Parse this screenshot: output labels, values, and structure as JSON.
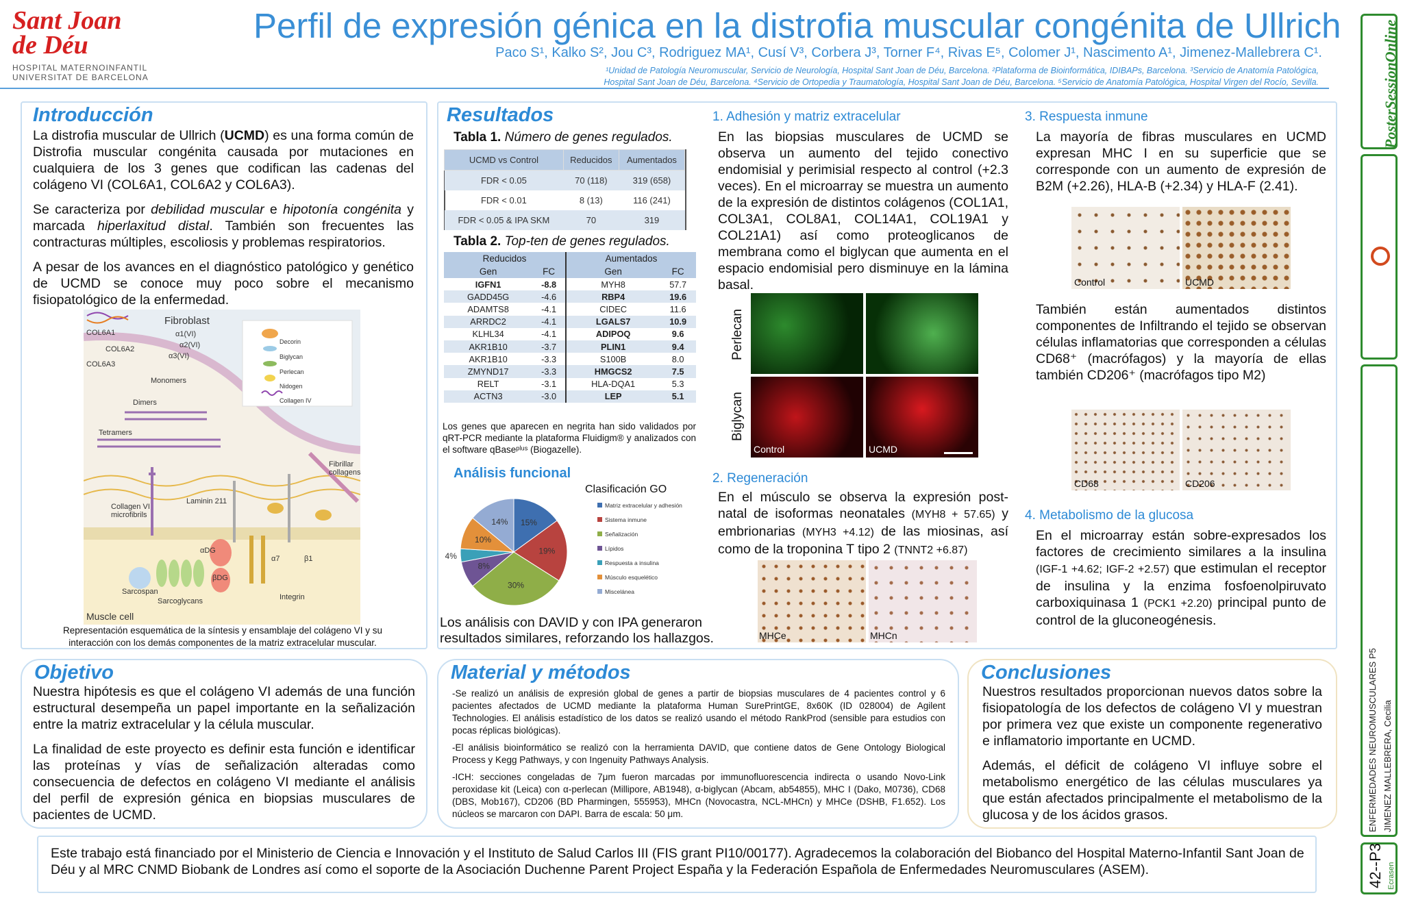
{
  "header": {
    "logo_l1": "Sant Joan",
    "logo_l2": "de Déu",
    "logo_hosp": "HOSPITAL MATERNOINFANTIL",
    "logo_univ": "UNIVERSITAT DE BARCELONA",
    "title": "Perfil de expresión génica en la distrofia muscular congénita de Ullrich",
    "authors": "Paco  S¹, Kalko S², Jou C³, Rodriguez MA¹, Cusí V³, Corbera J³, Torner F⁴, Rivas E⁵, Colomer J¹, Nascimento A¹, Jimenez-Mallebrera C¹.",
    "affil1": "¹Unidad de Patología Neuromuscular, Servicio de Neurología, Hospital Sant Joan de Déu, Barcelona. ²Plataforma de Bioinformática, IDIBAPs, Barcelona. ³Servicio de Anatomía Patológica,",
    "affil2": "Hospital Sant Joan de Déu, Barcelona. ⁴Servicio de Ortopedia y Traumatología, Hospital Sant Joan de Déu, Barcelona. ⁵Servicio de Anatomía Patológica, Hospital Virgen del Rocío, Sevilla."
  },
  "intro": {
    "heading": "Introducción",
    "p1a": "La distrofia muscular de Ullrich (",
    "p1b": "UCMD",
    "p1c": ") es una forma común de Distrofia muscular congénita causada por mutaciones en cualquiera de los 3 genes  que codifican las cadenas del colágeno VI (COL6A1, COL6A2 y COL6A3).",
    "p2a": "Se caracteriza por ",
    "p2b": "debilidad muscular",
    "p2c": " e ",
    "p2d": "hipotonía congénita",
    "p2e": " y marcada ",
    "p2f": "hiperlaxitud distal",
    "p2g": ". También son frecuentes las contracturas múltiples, escoliosis y problemas respiratorios.",
    "p3": "A pesar de los avances en el diagnóstico patológico y genético de UCMD se conoce muy poco sobre el  mecanismo fisiopatológico de la enfermedad.",
    "fig_fibroblast": "Fibroblast",
    "fig_col6a1": "COL6A1",
    "fig_col6a2": "COL6A2",
    "fig_col6a3": "COL6A3",
    "fig_a1": "α1(VI)",
    "fig_a2": "α2(VI)",
    "fig_a3": "α3(VI)",
    "fig_monomers": "Monomers",
    "fig_dimers": "Dimers",
    "fig_tetramers": "Tetramers",
    "fig_fibrillar": "Fibrillar collagens",
    "fig_microfibrils": "Collagen VI microfibrils",
    "fig_laminin": "Laminin 211",
    "fig_adg": "αDG",
    "fig_bdg": "βDG",
    "fig_a7": "α7",
    "fig_b1": "β1",
    "fig_integrin": "Integrin",
    "fig_sarcospan": "Sarcospan",
    "fig_sarcoglycans": "Sarcoglycans",
    "fig_muscle": "Muscle cell",
    "leg_decorin": "Decorin",
    "leg_biglycan": "Biglycan",
    "leg_perlecan": "Perlecan",
    "leg_nidogen": "Nidogen",
    "leg_collagen4": "Collagen IV",
    "caption": "Representación esquemática de la síntesis y ensamblaje del colágeno VI y su interacción con los demás componentes de la matriz extracelular muscular."
  },
  "results": {
    "heading": "Resultados",
    "t1_title_b": "Tabla 1.",
    "t1_title_i": " Número de genes regulados.",
    "t1_head": [
      "UCMD vs Control",
      "Reducidos",
      "Aumentados"
    ],
    "t1_rows": [
      [
        "FDR < 0.05",
        "70 (118)",
        "319 (658)"
      ],
      [
        "FDR < 0.01",
        "8 (13)",
        "116 (241)"
      ],
      [
        "FDR < 0.05 & IPA SKM",
        "70",
        "319"
      ]
    ],
    "t2_title_b": "Tabla 2.",
    "t2_title_i": " Top-ten de genes regulados.",
    "t2_group": [
      "Reducidos",
      "Aumentados"
    ],
    "t2_head": [
      "Gen",
      "FC",
      "Gen",
      "FC"
    ],
    "t2_rows": [
      [
        "IGFN1",
        "-8.8",
        "MYH8",
        "57.7"
      ],
      [
        "GADD45G",
        "-4.6",
        "RBP4",
        "19.6"
      ],
      [
        "ADAMTS8",
        "-4.1",
        "CIDEC",
        "11.6"
      ],
      [
        "ARRDC2",
        "-4.1",
        "LGALS7",
        "10.9"
      ],
      [
        "KLHL34",
        "-4.1",
        "ADIPOQ",
        "9.6"
      ],
      [
        "AKR1B10",
        "-3.7",
        "PLIN1",
        "9.4"
      ],
      [
        "AKR1B10",
        "-3.3",
        "S100B",
        "8.0"
      ],
      [
        "ZMYND17",
        "-3.3",
        "HMGCS2",
        "7.5"
      ],
      [
        "RELT",
        "-3.1",
        "HLA-DQA1",
        "5.3"
      ],
      [
        "ACTN3",
        "-3.0",
        "LEP",
        "5.1"
      ]
    ],
    "t2_note": "Los genes que aparecen en negrita han sido validados por qRT-PCR mediante la plataforma Fluidigm® y analizados con el software qBaseᵖˡᵘˢ (Biogazelle).",
    "func_heading": "Análisis funcional",
    "func_text": "Los análisis con DAVID y con IPA generaron resultados similares, reforzando los hallazgos."
  },
  "chart_data": {
    "type": "pie",
    "title": "Clasificación GO",
    "categories": [
      "Matriz extracelular y adhesión",
      "Sistema inmune",
      "Señalización",
      "Lípidos",
      "Respuesta a insulina",
      "Músculo esquelético",
      "Miscelánea"
    ],
    "values": [
      15,
      19,
      30,
      8,
      4,
      10,
      14
    ],
    "labels": [
      "15%",
      "19%",
      "30%",
      "8%",
      "4%",
      "10%",
      "14%"
    ],
    "colors": [
      "#3e6fb0",
      "#b8433f",
      "#8fae48",
      "#6e5494",
      "#3aa0b8",
      "#e3903a",
      "#94abd3"
    ],
    "legend": "right"
  },
  "adhesion": {
    "heading": "1. Adhesión y matriz extracelular",
    "text": "En las biopsias musculares de UCMD se observa un aumento del tejido conectivo endomisial y perimisial respecto al control (+2.3 veces). En el microarray se muestra un aumento de la expresión de distintos colágenos (COL1A1, COL3A1, COL8A1, COL14A1, COL19A1 y COL21A1) así como proteoglicanos de membrana como el biglycan que aumenta en el espacio endomisial pero disminuye en la lámina basal.",
    "lab_perlecan": "Perlecan",
    "lab_biglycan": "Biglycan",
    "lab_control": "Control",
    "lab_ucmd": "UCMD"
  },
  "regen": {
    "heading": "2. Regeneración",
    "text_a": "En el músculo se observa la expresión post-natal de isoformas neonatales ",
    "text_b": "(MYH8 + 57.65)",
    "text_c": " y embrionarias ",
    "text_d": "(MYH3 +4.12)",
    "text_e": " de las miosinas, así como de la troponina T tipo 2 ",
    "text_f": "(TNNT2 +6.87)",
    "lab_mhce": "MHCe",
    "lab_mhcn": "MHCn"
  },
  "immune": {
    "heading": "3. Respuesta inmune",
    "text1": "La mayoría de fibras musculares en UCMD expresan MHC I en su superficie que se corresponde con un aumento de expresión de B2M (+2.26), HLA-B (+2.34) y HLA-F (2.41).",
    "lab_control": "Control",
    "lab_ucmd": "UCMD",
    "text2": "También están aumentados distintos componentes de Infiltrando el tejido se observan células inflamatorias que corresponden a células CD68⁺ (macrófagos) y la mayoría de ellas también CD206⁺ (macrófagos tipo M2)",
    "lab_cd68": "CD68",
    "lab_cd206": "CD206"
  },
  "gluc": {
    "heading": "4. Metabolismo de la glucosa",
    "text_a": "En el microarray están sobre-expresados los factores de crecimiento similares a la insulina ",
    "text_b": "(IGF-1 +4.62; IGF-2 +2.57)",
    "text_c": " que estimulan el receptor de insulina y la enzima fosfoenolpiruvato carboxiquinasa 1 ",
    "text_d": "(PCK1 +2.20)",
    "text_e": " principal punto de control de la gluconeogénesis."
  },
  "objetivo": {
    "heading": "Objetivo",
    "p1": "Nuestra hipótesis es que el colágeno VI además de una función estructural desempeña un papel importante en la señalización entre la matriz extracelular y la célula muscular.",
    "p2": "La finalidad de este proyecto es definir esta función e identificar las proteínas y vías de señalización alteradas como consecuencia de defectos en colágeno VI mediante el análisis del perfil de expresión génica en biopsias musculares de pacientes de UCMD."
  },
  "metodos": {
    "heading": "Material y métodos",
    "p1": "-Se realizó un análisis de expresión global de genes a partir de biopsias musculares de 4 pacientes control y 6 pacientes afectados de UCMD mediante la plataforma Human SurePrintGE, 8x60K (ID 028004) de Agilent Technologies. El análisis estadístico de los datos se realizó usando el método RankProd (sensible para estudios con pocas réplicas biológicas).",
    "p2": "-El análisis bioinformático se realizó con la herramienta DAVID, que contiene datos de Gene Ontology Biological Process y Kegg Pathways, y con Ingenuity Pathways Analysis.",
    "p3": "-ICH: secciones congeladas de 7μm fueron marcadas por immunofluorescencia indirecta o usando Novo-Link peroxidase kit (Leica) con α-perlecan (Millipore, AB1948), α-biglycan (Abcam, ab54855), MHC I (Dako, M0736), CD68 (DBS, Mob167), CD206 (BD Pharmingen, 555953), MHCn (Novocastra, NCL-MHCn) y MHCe (DSHB, F1.652). Los núcleos se marcaron con DAPI. Barra de escala: 50 μm."
  },
  "conclusiones": {
    "heading": "Conclusiones",
    "p1": "Nuestros resultados proporcionan nuevos datos sobre la fisiopatología de los defectos de colágeno VI y muestran por primera vez que existe un componente regenerativo e inflamatorio importante en UCMD.",
    "p2": "Además, el déficit de colágeno VI influye sobre el metabolismo energético de las células musculares ya que están afectados principalmente el metabolismo de la glucosa y de los ácidos grasos."
  },
  "funding": {
    "text": "Este trabajo está financiado por el Ministerio de Ciencia e Innovación y el Instituto de Salud Carlos III (FIS grant PI10/00177). Agradecemos la colaboración del Biobanco del Hospital Materno-Infantil Sant Joan de Déu y al MRC CNMD Biobank de Londres así como el soporte de la Asociación Duchenne Parent Project España y la Federación Española de Enfermedades Neuromusculares (ASEM)."
  },
  "sidebar": {
    "poster": "Poster",
    "session": "Session",
    "online": "Online",
    "topic": "ENFERMEDADES NEUROMUSCULARES P5",
    "author": "JIMENEZ MALLEBRERA, Cecilia",
    "code": "42--P3",
    "brand": "Ecrasen"
  }
}
